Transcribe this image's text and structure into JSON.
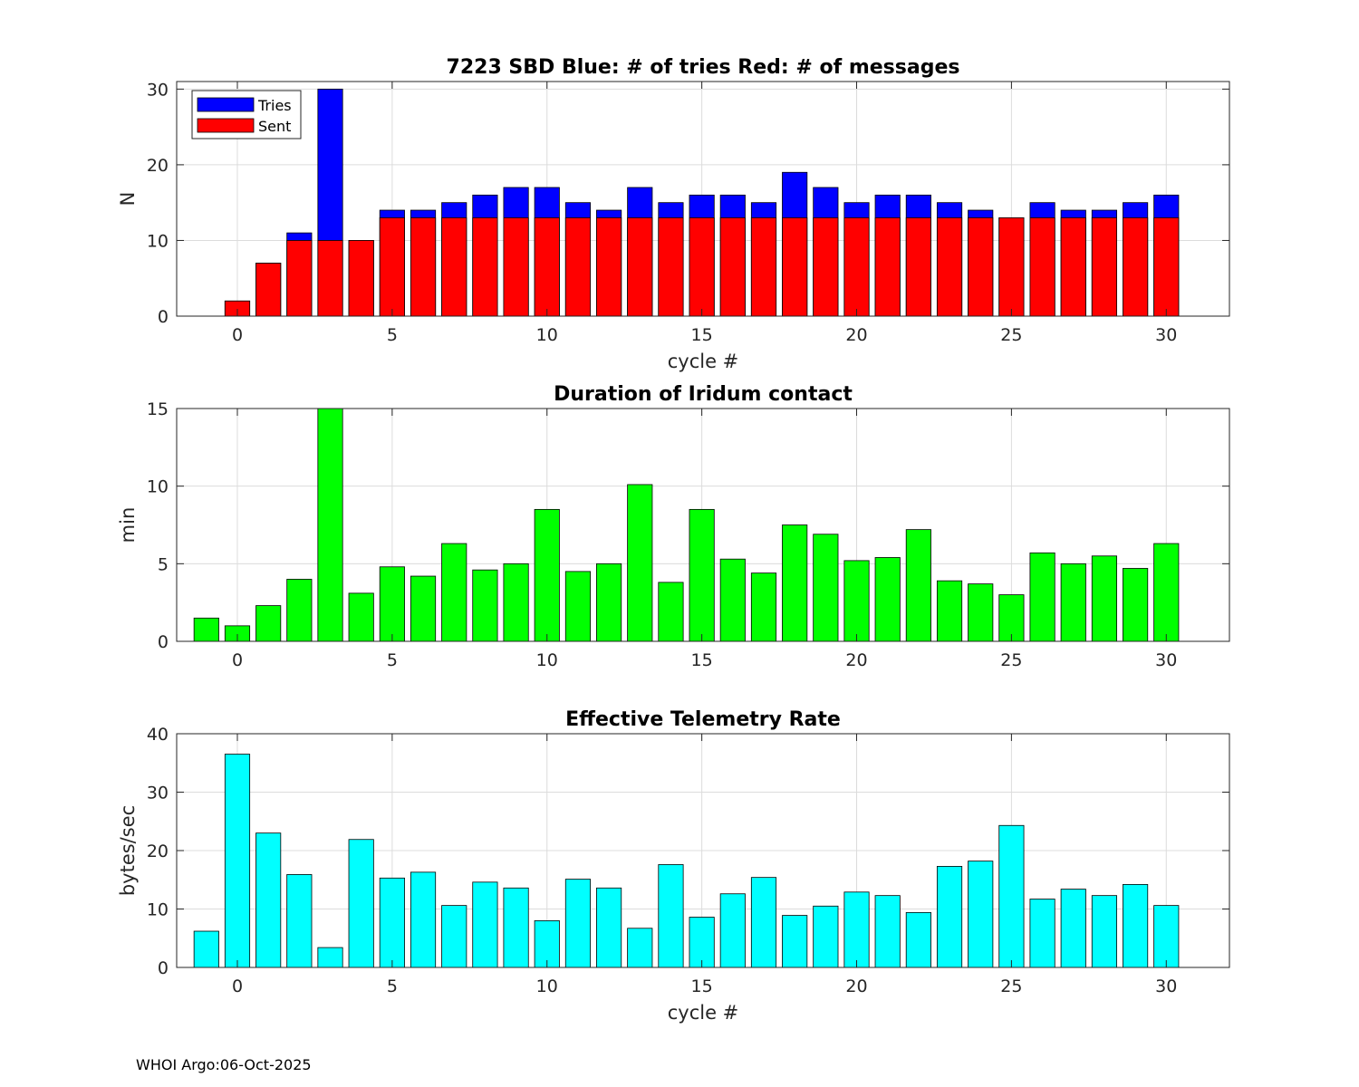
{
  "footer": "WHOI Argo:06-Oct-2025",
  "chart_data": [
    {
      "type": "bar",
      "stacked_overlay": true,
      "title": "7223 SBD  Blue: # of tries   Red: # of messages",
      "xlabel": "cycle #",
      "ylabel": "N",
      "xlim": [
        -1.96,
        32.04
      ],
      "ylim": [
        0,
        31
      ],
      "xticks": [
        0,
        5,
        10,
        15,
        20,
        25,
        30
      ],
      "yticks": [
        0,
        10,
        20,
        30
      ],
      "grid": true,
      "legend": {
        "placement": "top-left",
        "entries": [
          "Tries",
          "Sent"
        ]
      },
      "categories": [
        -1,
        0,
        1,
        2,
        3,
        4,
        5,
        6,
        7,
        8,
        9,
        10,
        11,
        12,
        13,
        14,
        15,
        16,
        17,
        18,
        19,
        20,
        21,
        22,
        23,
        24,
        25,
        26,
        27,
        28,
        29,
        30
      ],
      "series": [
        {
          "name": "Tries",
          "color": "#0000ff",
          "values": [
            0,
            2,
            7,
            11,
            30,
            10,
            14,
            14,
            15,
            16,
            17,
            17,
            15,
            14,
            17,
            15,
            16,
            16,
            15,
            19,
            17,
            15,
            16,
            16,
            15,
            14,
            13,
            15,
            14,
            14,
            15,
            16
          ]
        },
        {
          "name": "Sent",
          "color": "#ff0000",
          "values": [
            0,
            2,
            7,
            10,
            10,
            10,
            13,
            13,
            13,
            13,
            13,
            13,
            13,
            13,
            13,
            13,
            13,
            13,
            13,
            13,
            13,
            13,
            13,
            13,
            13,
            13,
            13,
            13,
            13,
            13,
            13,
            13
          ]
        }
      ]
    },
    {
      "type": "bar",
      "title": "Duration of Iridum contact",
      "xlabel": "",
      "ylabel": "min",
      "xlim": [
        -1.96,
        32.04
      ],
      "ylim": [
        0,
        15
      ],
      "xticks": [
        0,
        5,
        10,
        15,
        20,
        25,
        30
      ],
      "yticks": [
        0,
        5,
        10,
        15
      ],
      "grid": true,
      "categories": [
        -1,
        0,
        1,
        2,
        3,
        4,
        5,
        6,
        7,
        8,
        9,
        10,
        11,
        12,
        13,
        14,
        15,
        16,
        17,
        18,
        19,
        20,
        21,
        22,
        23,
        24,
        25,
        26,
        27,
        28,
        29,
        30
      ],
      "series": [
        {
          "name": "Duration",
          "color": "#00ff00",
          "values": [
            1.5,
            1.0,
            2.3,
            4.0,
            15.0,
            3.1,
            4.8,
            4.2,
            6.3,
            4.6,
            5.0,
            8.5,
            4.5,
            5.0,
            10.1,
            3.8,
            8.5,
            5.3,
            4.4,
            7.5,
            6.9,
            5.2,
            5.4,
            7.2,
            3.9,
            3.7,
            3.0,
            5.7,
            5.0,
            5.5,
            4.7,
            6.3
          ]
        }
      ]
    },
    {
      "type": "bar",
      "title": "Effective Telemetry Rate",
      "xlabel": "cycle #",
      "ylabel": "bytes/sec",
      "xlim": [
        -1.96,
        32.04
      ],
      "ylim": [
        0,
        40
      ],
      "xticks": [
        0,
        5,
        10,
        15,
        20,
        25,
        30
      ],
      "yticks": [
        0,
        10,
        20,
        30,
        40
      ],
      "grid": true,
      "categories": [
        -1,
        0,
        1,
        2,
        3,
        4,
        5,
        6,
        7,
        8,
        9,
        10,
        11,
        12,
        13,
        14,
        15,
        16,
        17,
        18,
        19,
        20,
        21,
        22,
        23,
        24,
        25,
        26,
        27,
        28,
        29,
        30
      ],
      "series": [
        {
          "name": "Rate",
          "color": "#00ffff",
          "values": [
            6.2,
            36.5,
            23.0,
            15.9,
            3.4,
            21.9,
            15.3,
            16.3,
            10.6,
            14.6,
            13.6,
            8.0,
            15.1,
            13.6,
            6.7,
            17.6,
            8.6,
            12.6,
            15.4,
            8.9,
            10.5,
            12.9,
            12.3,
            9.4,
            17.3,
            18.2,
            24.3,
            11.7,
            13.4,
            12.3,
            14.2,
            10.6
          ]
        }
      ]
    }
  ]
}
